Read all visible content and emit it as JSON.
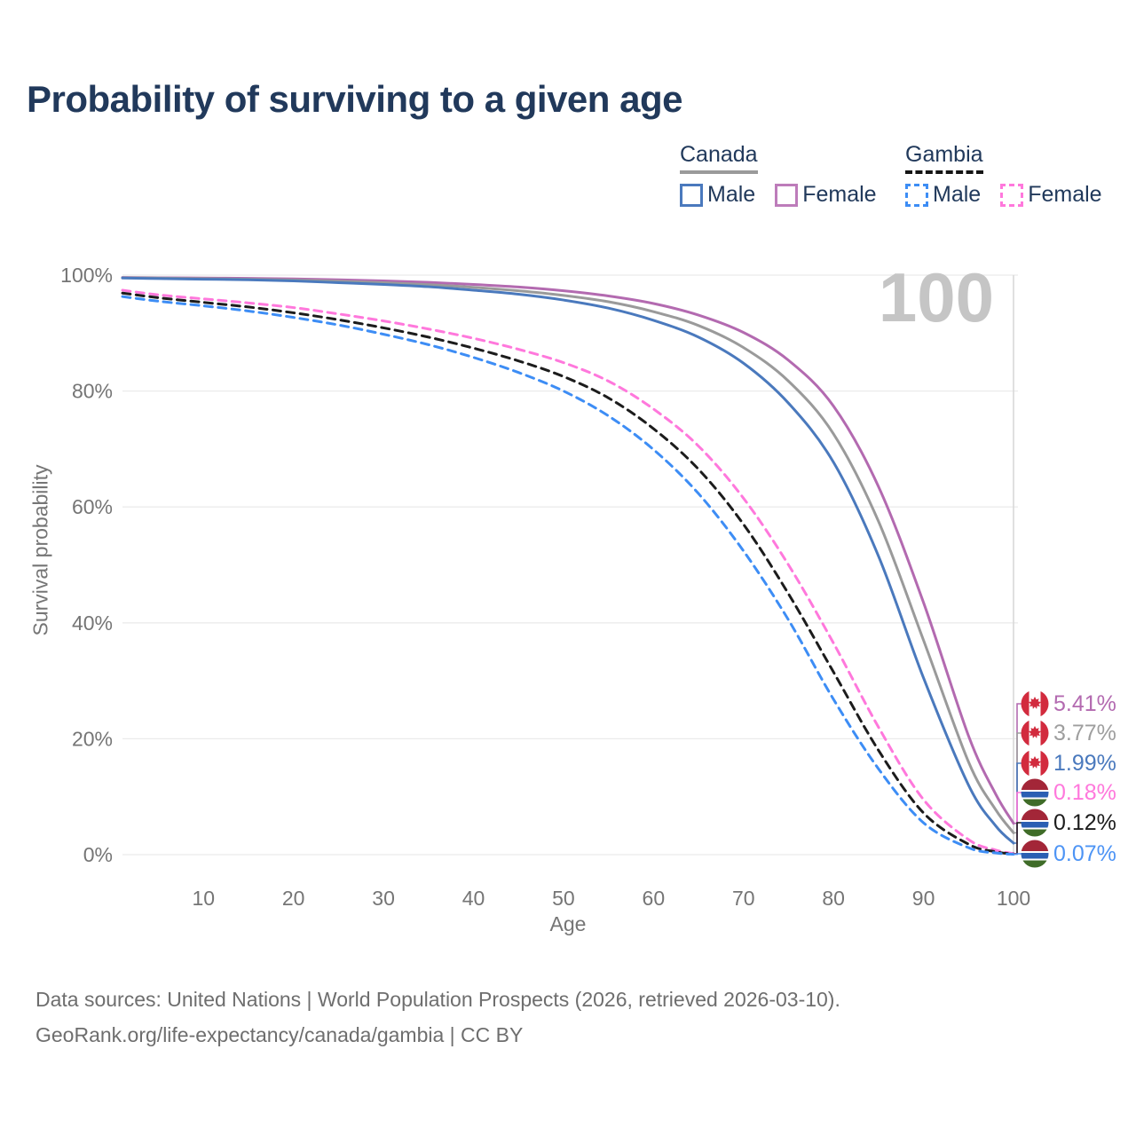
{
  "title": "Probability of surviving to a given age",
  "watermark": "100",
  "legend": {
    "groups": [
      {
        "title": "Canada",
        "line_style": "solid",
        "underline_color": "#9a9a9a",
        "items": [
          {
            "label": "Male",
            "color": "#4a79bd"
          },
          {
            "label": "Female",
            "color": "#bd7cba"
          }
        ]
      },
      {
        "title": "Gambia",
        "line_style": "dashed",
        "underline_color": "#151515",
        "items": [
          {
            "label": "Male",
            "color": "#3d8df5"
          },
          {
            "label": "Female",
            "color": "#ff78dc"
          }
        ]
      }
    ]
  },
  "chart_data": {
    "type": "line",
    "title": "Probability of surviving to a given age",
    "xlabel": "Age",
    "ylabel": "Survival probability",
    "xlim": [
      1,
      100
    ],
    "ylim": [
      0,
      100
    ],
    "grid": "horizontal",
    "x_ticks": [
      10,
      20,
      30,
      40,
      50,
      60,
      70,
      80,
      90,
      100
    ],
    "y_ticks": [
      {
        "pct": 100,
        "label": "100%"
      },
      {
        "pct": 80,
        "label": "80%"
      },
      {
        "pct": 60,
        "label": "60%"
      },
      {
        "pct": 40,
        "label": "40%"
      },
      {
        "pct": 20,
        "label": "20%"
      },
      {
        "pct": 0,
        "label": "0%"
      }
    ],
    "age_marker": 100,
    "series": [
      {
        "name": "Canada Female",
        "country": "Canada",
        "sex": "Female",
        "color": "#b36ab0",
        "dashed": false,
        "data": [
          [
            1,
            99.6
          ],
          [
            5,
            99.55
          ],
          [
            10,
            99.5
          ],
          [
            15,
            99.45
          ],
          [
            20,
            99.35
          ],
          [
            25,
            99.2
          ],
          [
            30,
            99.0
          ],
          [
            35,
            98.75
          ],
          [
            40,
            98.4
          ],
          [
            45,
            97.95
          ],
          [
            50,
            97.3
          ],
          [
            55,
            96.4
          ],
          [
            60,
            95.1
          ],
          [
            65,
            93.1
          ],
          [
            70,
            90.1
          ],
          [
            75,
            85.3
          ],
          [
            80,
            77.4
          ],
          [
            85,
            63.5
          ],
          [
            90,
            43.5
          ],
          [
            95,
            20.5
          ],
          [
            98,
            10.5
          ],
          [
            100,
            5.41
          ]
        ]
      },
      {
        "name": "Canada Both sexes",
        "country": "Canada",
        "sex": "Both",
        "color": "#9a9a9a",
        "dashed": false,
        "data": [
          [
            1,
            99.55
          ],
          [
            5,
            99.5
          ],
          [
            10,
            99.4
          ],
          [
            15,
            99.3
          ],
          [
            20,
            99.15
          ],
          [
            25,
            98.95
          ],
          [
            30,
            98.7
          ],
          [
            35,
            98.35
          ],
          [
            40,
            97.9
          ],
          [
            45,
            97.3
          ],
          [
            50,
            96.5
          ],
          [
            55,
            95.4
          ],
          [
            60,
            93.7
          ],
          [
            65,
            91.3
          ],
          [
            70,
            87.5
          ],
          [
            75,
            81.7
          ],
          [
            80,
            72.6
          ],
          [
            85,
            57.5
          ],
          [
            90,
            37.0
          ],
          [
            95,
            16.0
          ],
          [
            98,
            7.8
          ],
          [
            100,
            3.77
          ]
        ]
      },
      {
        "name": "Canada Male",
        "country": "Canada",
        "sex": "Male",
        "color": "#4a79bd",
        "dashed": false,
        "data": [
          [
            1,
            99.5
          ],
          [
            5,
            99.4
          ],
          [
            10,
            99.3
          ],
          [
            15,
            99.2
          ],
          [
            20,
            99.0
          ],
          [
            25,
            98.7
          ],
          [
            30,
            98.4
          ],
          [
            35,
            98.0
          ],
          [
            40,
            97.4
          ],
          [
            45,
            96.7
          ],
          [
            50,
            95.7
          ],
          [
            55,
            94.3
          ],
          [
            60,
            92.2
          ],
          [
            65,
            89.3
          ],
          [
            70,
            84.8
          ],
          [
            75,
            77.9
          ],
          [
            80,
            67.7
          ],
          [
            85,
            51.5
          ],
          [
            90,
            30.5
          ],
          [
            95,
            12.0
          ],
          [
            98,
            5.0
          ],
          [
            100,
            1.99
          ]
        ]
      },
      {
        "name": "Gambia Female",
        "country": "Gambia",
        "sex": "Female",
        "color": "#ff78dc",
        "dashed": true,
        "data": [
          [
            1,
            97.4
          ],
          [
            5,
            96.6
          ],
          [
            10,
            95.9
          ],
          [
            15,
            95.2
          ],
          [
            20,
            94.4
          ],
          [
            25,
            93.3
          ],
          [
            30,
            92.1
          ],
          [
            35,
            90.7
          ],
          [
            40,
            89.1
          ],
          [
            45,
            87.2
          ],
          [
            50,
            84.9
          ],
          [
            55,
            81.7
          ],
          [
            60,
            76.9
          ],
          [
            65,
            70.5
          ],
          [
            70,
            61.5
          ],
          [
            75,
            50.0
          ],
          [
            80,
            36.5
          ],
          [
            85,
            22.0
          ],
          [
            90,
            9.5
          ],
          [
            95,
            2.6
          ],
          [
            98,
            0.8
          ],
          [
            100,
            0.18
          ]
        ]
      },
      {
        "name": "Gambia Both sexes",
        "country": "Gambia",
        "sex": "Both",
        "color": "#1c1c1c",
        "dashed": true,
        "data": [
          [
            1,
            96.9
          ],
          [
            5,
            96.1
          ],
          [
            10,
            95.3
          ],
          [
            15,
            94.5
          ],
          [
            20,
            93.5
          ],
          [
            25,
            92.3
          ],
          [
            30,
            90.9
          ],
          [
            35,
            89.3
          ],
          [
            40,
            87.4
          ],
          [
            45,
            85.2
          ],
          [
            50,
            82.5
          ],
          [
            55,
            78.8
          ],
          [
            60,
            73.5
          ],
          [
            65,
            66.5
          ],
          [
            70,
            57.0
          ],
          [
            75,
            45.0
          ],
          [
            80,
            31.5
          ],
          [
            85,
            18.0
          ],
          [
            90,
            7.2
          ],
          [
            95,
            1.8
          ],
          [
            98,
            0.5
          ],
          [
            100,
            0.12
          ]
        ]
      },
      {
        "name": "Gambia Male",
        "country": "Gambia",
        "sex": "Male",
        "color": "#3d8df5",
        "dashed": true,
        "data": [
          [
            1,
            96.3
          ],
          [
            5,
            95.5
          ],
          [
            10,
            94.7
          ],
          [
            15,
            93.8
          ],
          [
            20,
            92.7
          ],
          [
            25,
            91.4
          ],
          [
            30,
            89.8
          ],
          [
            35,
            88.0
          ],
          [
            40,
            85.8
          ],
          [
            45,
            83.2
          ],
          [
            50,
            80.0
          ],
          [
            55,
            75.7
          ],
          [
            60,
            69.9
          ],
          [
            65,
            62.3
          ],
          [
            70,
            52.4
          ],
          [
            75,
            40.5
          ],
          [
            80,
            26.8
          ],
          [
            85,
            14.8
          ],
          [
            90,
            5.5
          ],
          [
            95,
            1.2
          ],
          [
            98,
            0.3
          ],
          [
            100,
            0.07
          ]
        ]
      }
    ],
    "end_labels": [
      {
        "flag": "canada",
        "series": "Canada Female",
        "value": "5.41%",
        "pct": 5.41,
        "color": "#b36ab0"
      },
      {
        "flag": "canada",
        "series": "Canada Both sexes",
        "value": "3.77%",
        "pct": 3.77,
        "color": "#9e9e9e"
      },
      {
        "flag": "canada",
        "series": "Canada Male",
        "value": "1.99%",
        "pct": 1.99,
        "color": "#4a79bd"
      },
      {
        "flag": "gambia",
        "series": "Gambia Female",
        "value": "0.18%",
        "pct": 0.18,
        "color": "#ff78dc"
      },
      {
        "flag": "gambia",
        "series": "Gambia Both sexes",
        "value": "0.12%",
        "pct": 0.12,
        "color": "#1c1c1c"
      },
      {
        "flag": "gambia",
        "series": "Gambia Male",
        "value": "0.07%",
        "pct": 0.07,
        "color": "#4d94f5"
      }
    ]
  },
  "footer": {
    "line1": "Data sources: United Nations | World Population Prospects (2026, retrieved 2026-03-10).",
    "line2": "GeoRank.org/life-expectancy/canada/gambia | CC BY"
  }
}
